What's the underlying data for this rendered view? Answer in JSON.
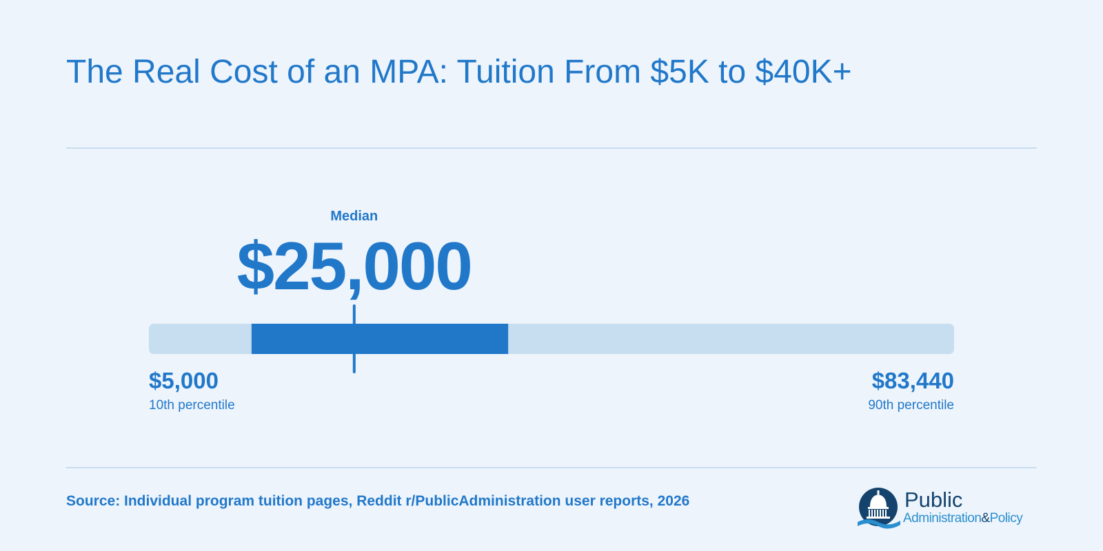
{
  "title": "The Real Cost of an MPA: Tuition From $5K to $40K+",
  "chart_data": {
    "type": "range",
    "min": {
      "value": 5000,
      "label": "$5,000",
      "caption": "10th percentile"
    },
    "max": {
      "value": 83440,
      "label": "$83,440",
      "caption": "90th percentile"
    },
    "median": {
      "value": 25000,
      "label": "$25,000",
      "caption": "Median"
    },
    "highlight_range": [
      15000,
      40000
    ],
    "colors": {
      "track": "#c7ddf0",
      "highlight": "#2178c9",
      "marker": "#2178c9",
      "text": "#2178c9",
      "background": "#edf4fc"
    }
  },
  "source": "Source: Individual program tuition pages, Reddit r/PublicAdministration user reports, 2026",
  "logo": {
    "line1": "Public",
    "line2_part1": "Administration",
    "line2_amp": "&",
    "line2_part2": "Policy",
    "icon": "capitol-dome-icon"
  }
}
